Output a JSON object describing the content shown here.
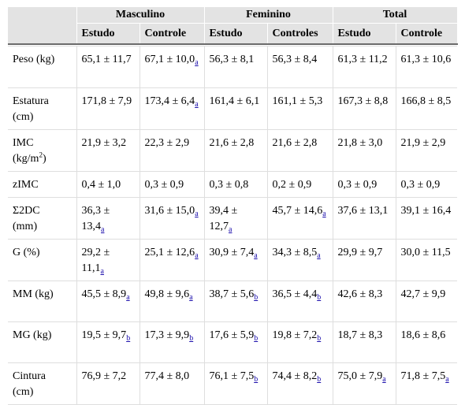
{
  "groups": [
    "Masculino",
    "Feminino",
    "Total"
  ],
  "subheaders": [
    "Estudo",
    "Controle",
    "Estudo",
    "Controles",
    "Estudo",
    "Controle"
  ],
  "rows": [
    {
      "label": [
        "Peso (kg)",
        ""
      ],
      "cells": [
        {
          "v": "65,1 ± 11,7",
          "fn": ""
        },
        {
          "v": "67,1 ± 10,0",
          "fn": "a"
        },
        {
          "v": "56,3 ± 8,1",
          "fn": ""
        },
        {
          "v": "56,3 ± 8,4",
          "fn": ""
        },
        {
          "v": "61,3 ± 11,2",
          "fn": ""
        },
        {
          "v": "61,3 ± 10,6",
          "fn": ""
        }
      ]
    },
    {
      "label": [
        "Estatura",
        "(cm)"
      ],
      "cells": [
        {
          "v": "171,8 ± 7,9",
          "fn": ""
        },
        {
          "v": "173,4 ± 6,4",
          "fn": "a"
        },
        {
          "v": "161,4 ± 6,1",
          "fn": ""
        },
        {
          "v": "161,1 ± 5,3",
          "fn": ""
        },
        {
          "v": "167,3 ± 8,8",
          "fn": ""
        },
        {
          "v": "166,8 ± 8,5",
          "fn": ""
        }
      ]
    },
    {
      "label": [
        "IMC",
        "(kg/m",
        "2",
        ")"
      ],
      "cells": [
        {
          "v": "21,9 ± 3,2",
          "fn": ""
        },
        {
          "v": "22,3 ± 2,9",
          "fn": ""
        },
        {
          "v": "21,6 ± 2,8",
          "fn": ""
        },
        {
          "v": "21,6 ± 2,8",
          "fn": ""
        },
        {
          "v": "21,8 ± 3,0",
          "fn": ""
        },
        {
          "v": "21,9 ± 2,9",
          "fn": ""
        }
      ]
    },
    {
      "label": [
        "zIMC",
        ""
      ],
      "cells": [
        {
          "v": "0,4 ± 1,0",
          "fn": ""
        },
        {
          "v": "0,3 ± 0,9",
          "fn": ""
        },
        {
          "v": "0,3 ± 0,8",
          "fn": ""
        },
        {
          "v": "0,2 ± 0,9",
          "fn": ""
        },
        {
          "v": "0,3 ± 0,9",
          "fn": ""
        },
        {
          "v": "0,3 ± 0,9",
          "fn": ""
        }
      ]
    },
    {
      "label": [
        "Σ2DC",
        "(mm)"
      ],
      "cells": [
        {
          "v": "36,3 ± 13,4",
          "fn": "a"
        },
        {
          "v": "31,6 ± 15,0",
          "fn": "a"
        },
        {
          "v": "39,4 ± 12,7",
          "fn": "a"
        },
        {
          "v": "45,7 ± 14,6",
          "fn": "a"
        },
        {
          "v": "37,6 ± 13,1",
          "fn": ""
        },
        {
          "v": "39,1 ± 16,4",
          "fn": ""
        }
      ]
    },
    {
      "label": [
        "G (%)",
        ""
      ],
      "cells": [
        {
          "v": "29,2 ± 11,1",
          "fn": "a"
        },
        {
          "v": "25,1 ± 12,6",
          "fn": "a"
        },
        {
          "v": "30,9 ± 7,4",
          "fn": "a"
        },
        {
          "v": "34,3 ± 8,5",
          "fn": "a"
        },
        {
          "v": "29,9 ± 9,7",
          "fn": ""
        },
        {
          "v": "30,0 ± 11,5",
          "fn": ""
        }
      ]
    },
    {
      "label": [
        "MM (kg)",
        ""
      ],
      "cells": [
        {
          "v": "45,5 ± 8,9",
          "fn": "a"
        },
        {
          "v": "49,8 ± 9,6",
          "fn": "a"
        },
        {
          "v": "38,7 ± 5,6",
          "fn": "b"
        },
        {
          "v": "36,5 ± 4,4",
          "fn": "b"
        },
        {
          "v": "42,6 ± 8,3",
          "fn": ""
        },
        {
          "v": "42,7 ± 9,9",
          "fn": ""
        }
      ]
    },
    {
      "label": [
        "MG (kg)",
        ""
      ],
      "cells": [
        {
          "v": "19,5 ± 9,7",
          "fn": "b"
        },
        {
          "v": "17,3 ± 9,9",
          "fn": "b"
        },
        {
          "v": "17,6 ± 5,9",
          "fn": "b"
        },
        {
          "v": "19,8 ± 7,2",
          "fn": "b"
        },
        {
          "v": "18,7 ± 8,3",
          "fn": ""
        },
        {
          "v": "18,6 ± 8,6",
          "fn": ""
        }
      ]
    },
    {
      "label": [
        "Cintura",
        "(cm)"
      ],
      "cells": [
        {
          "v": "76,9 ± 7,2",
          "fn": ""
        },
        {
          "v": "77,4 ± 8,0",
          "fn": ""
        },
        {
          "v": "76,1 ± 7,5",
          "fn": "b"
        },
        {
          "v": "74,4 ± 8,2",
          "fn": "b"
        },
        {
          "v": "75,0 ± 7,9",
          "fn": "a"
        },
        {
          "v": "71,8 ± 7,5",
          "fn": "a"
        }
      ]
    }
  ]
}
